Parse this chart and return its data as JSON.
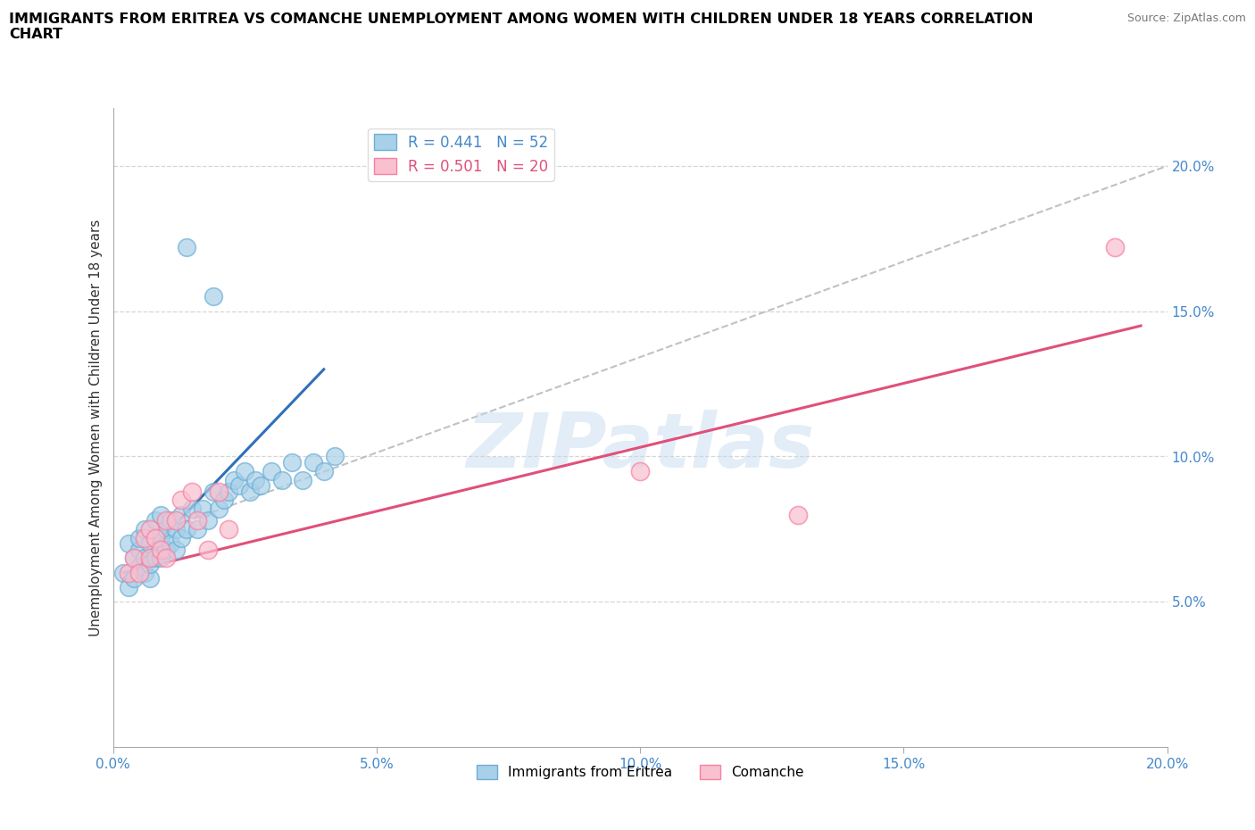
{
  "title": "IMMIGRANTS FROM ERITREA VS COMANCHE UNEMPLOYMENT AMONG WOMEN WITH CHILDREN UNDER 18 YEARS CORRELATION\nCHART",
  "source_text": "Source: ZipAtlas.com",
  "ylabel": "Unemployment Among Women with Children Under 18 years",
  "xlim": [
    0.0,
    0.2
  ],
  "ylim": [
    0.0,
    0.22
  ],
  "xticks": [
    0.0,
    0.05,
    0.1,
    0.15,
    0.2
  ],
  "yticks": [
    0.05,
    0.1,
    0.15,
    0.2
  ],
  "xtick_labels": [
    "0.0%",
    "5.0%",
    "10.0%",
    "15.0%",
    "20.0%"
  ],
  "right_ytick_labels": [
    "5.0%",
    "10.0%",
    "15.0%",
    "20.0%"
  ],
  "right_yticks": [
    0.05,
    0.1,
    0.15,
    0.2
  ],
  "blue_color": "#a8d0e8",
  "blue_edge_color": "#6baed6",
  "pink_color": "#f9c0d0",
  "pink_edge_color": "#f780a0",
  "blue_line_color": "#3070b8",
  "pink_line_color": "#e0507a",
  "dashed_line_color": "#bbbbbb",
  "legend_blue_label": "R = 0.441   N = 52",
  "legend_pink_label": "R = 0.501   N = 20",
  "watermark": "ZIPatlas",
  "blue_x": [
    0.002,
    0.003,
    0.003,
    0.004,
    0.004,
    0.005,
    0.005,
    0.005,
    0.006,
    0.006,
    0.006,
    0.007,
    0.007,
    0.007,
    0.008,
    0.008,
    0.008,
    0.009,
    0.009,
    0.009,
    0.01,
    0.01,
    0.011,
    0.011,
    0.012,
    0.012,
    0.013,
    0.013,
    0.014,
    0.015,
    0.016,
    0.017,
    0.018,
    0.019,
    0.02,
    0.021,
    0.022,
    0.023,
    0.024,
    0.025,
    0.026,
    0.027,
    0.028,
    0.03,
    0.032,
    0.034,
    0.036,
    0.038,
    0.04,
    0.042,
    0.014,
    0.019
  ],
  "blue_y": [
    0.06,
    0.055,
    0.07,
    0.058,
    0.065,
    0.062,
    0.068,
    0.072,
    0.06,
    0.065,
    0.075,
    0.058,
    0.063,
    0.07,
    0.065,
    0.072,
    0.078,
    0.065,
    0.072,
    0.08,
    0.068,
    0.075,
    0.07,
    0.078,
    0.068,
    0.075,
    0.072,
    0.08,
    0.075,
    0.082,
    0.075,
    0.082,
    0.078,
    0.088,
    0.082,
    0.085,
    0.088,
    0.092,
    0.09,
    0.095,
    0.088,
    0.092,
    0.09,
    0.095,
    0.092,
    0.098,
    0.092,
    0.098,
    0.095,
    0.1,
    0.172,
    0.155
  ],
  "pink_x": [
    0.003,
    0.004,
    0.005,
    0.006,
    0.007,
    0.007,
    0.008,
    0.009,
    0.01,
    0.01,
    0.012,
    0.013,
    0.015,
    0.016,
    0.018,
    0.02,
    0.022,
    0.1,
    0.13,
    0.19
  ],
  "pink_y": [
    0.06,
    0.065,
    0.06,
    0.072,
    0.065,
    0.075,
    0.072,
    0.068,
    0.078,
    0.065,
    0.078,
    0.085,
    0.088,
    0.078,
    0.068,
    0.088,
    0.075,
    0.095,
    0.08,
    0.172
  ],
  "blue_line_x": [
    0.002,
    0.04
  ],
  "blue_line_y": [
    0.058,
    0.13
  ],
  "pink_line_x": [
    0.002,
    0.195
  ],
  "pink_line_y": [
    0.06,
    0.145
  ],
  "dashed_line_x": [
    0.01,
    0.2
  ],
  "dashed_line_y": [
    0.075,
    0.2
  ]
}
